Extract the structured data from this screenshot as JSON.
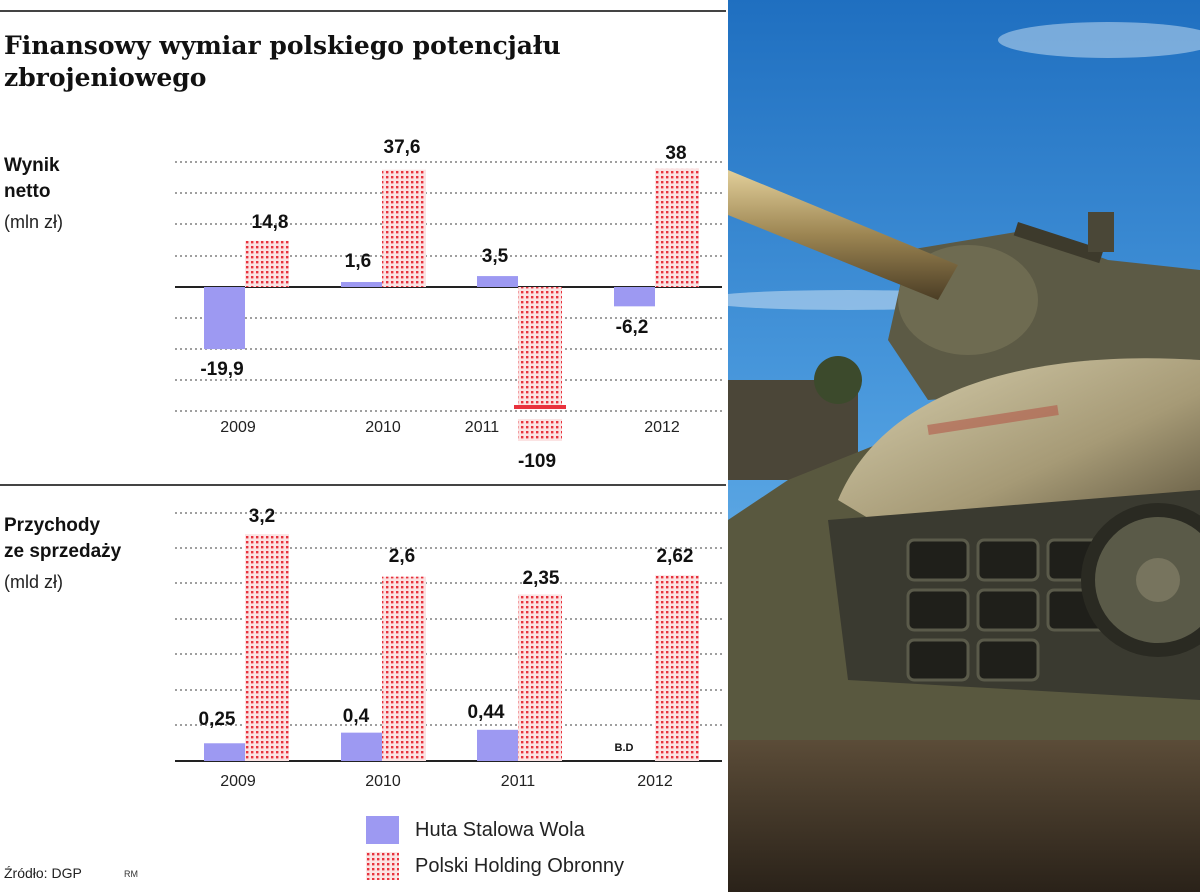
{
  "title": "Finansowy wymiar polskiego potencjału zbrojeniowego",
  "colors": {
    "huta": "#9d99f2",
    "phd_dot": "#e8323d",
    "phd_bg": "#fbe3e3",
    "rule": "#444444"
  },
  "chart_data": [
    {
      "type": "bar",
      "title": "Wynik netto",
      "title_lines": [
        "Wynik",
        "netto"
      ],
      "unit": "(mln zł)",
      "categories": [
        "2009",
        "2010",
        "2011",
        "2012"
      ],
      "series": [
        {
          "name": "Huta Stalowa Wola",
          "values": [
            -19.9,
            1.6,
            3.5,
            -6.2
          ],
          "labels": [
            "-19,9",
            "1,6",
            "3,5",
            "-6,2"
          ]
        },
        {
          "name": "Polski Holding Obronny",
          "values": [
            14.8,
            37.6,
            -109,
            38
          ],
          "labels": [
            "14,8",
            "37,6",
            "-109",
            "38"
          ]
        }
      ],
      "axis_break": true,
      "grid": true
    },
    {
      "type": "bar",
      "title": "Przychody ze sprzedaży",
      "title_lines": [
        "Przychody",
        "ze sprzedaży"
      ],
      "unit": "(mld zł)",
      "categories": [
        "2009",
        "2010",
        "2011",
        "2012"
      ],
      "series": [
        {
          "name": "Huta Stalowa Wola",
          "values": [
            0.25,
            0.4,
            0.44,
            null
          ],
          "labels": [
            "0,25",
            "0,4",
            "0,44",
            "B.D"
          ]
        },
        {
          "name": "Polski Holding Obronny",
          "values": [
            3.2,
            2.6,
            2.35,
            2.62
          ],
          "labels": [
            "3,2",
            "2,6",
            "2,35",
            "2,62"
          ]
        }
      ],
      "grid": true
    }
  ],
  "legend": [
    {
      "name": "Huta Stalowa Wola",
      "icon": "solid-lavender-square"
    },
    {
      "name": "Polski Holding Obronny",
      "icon": "red-dotted-square"
    }
  ],
  "source": "Źródło: DGP",
  "credit": "RM",
  "photo_description_icon": "tank-photo"
}
